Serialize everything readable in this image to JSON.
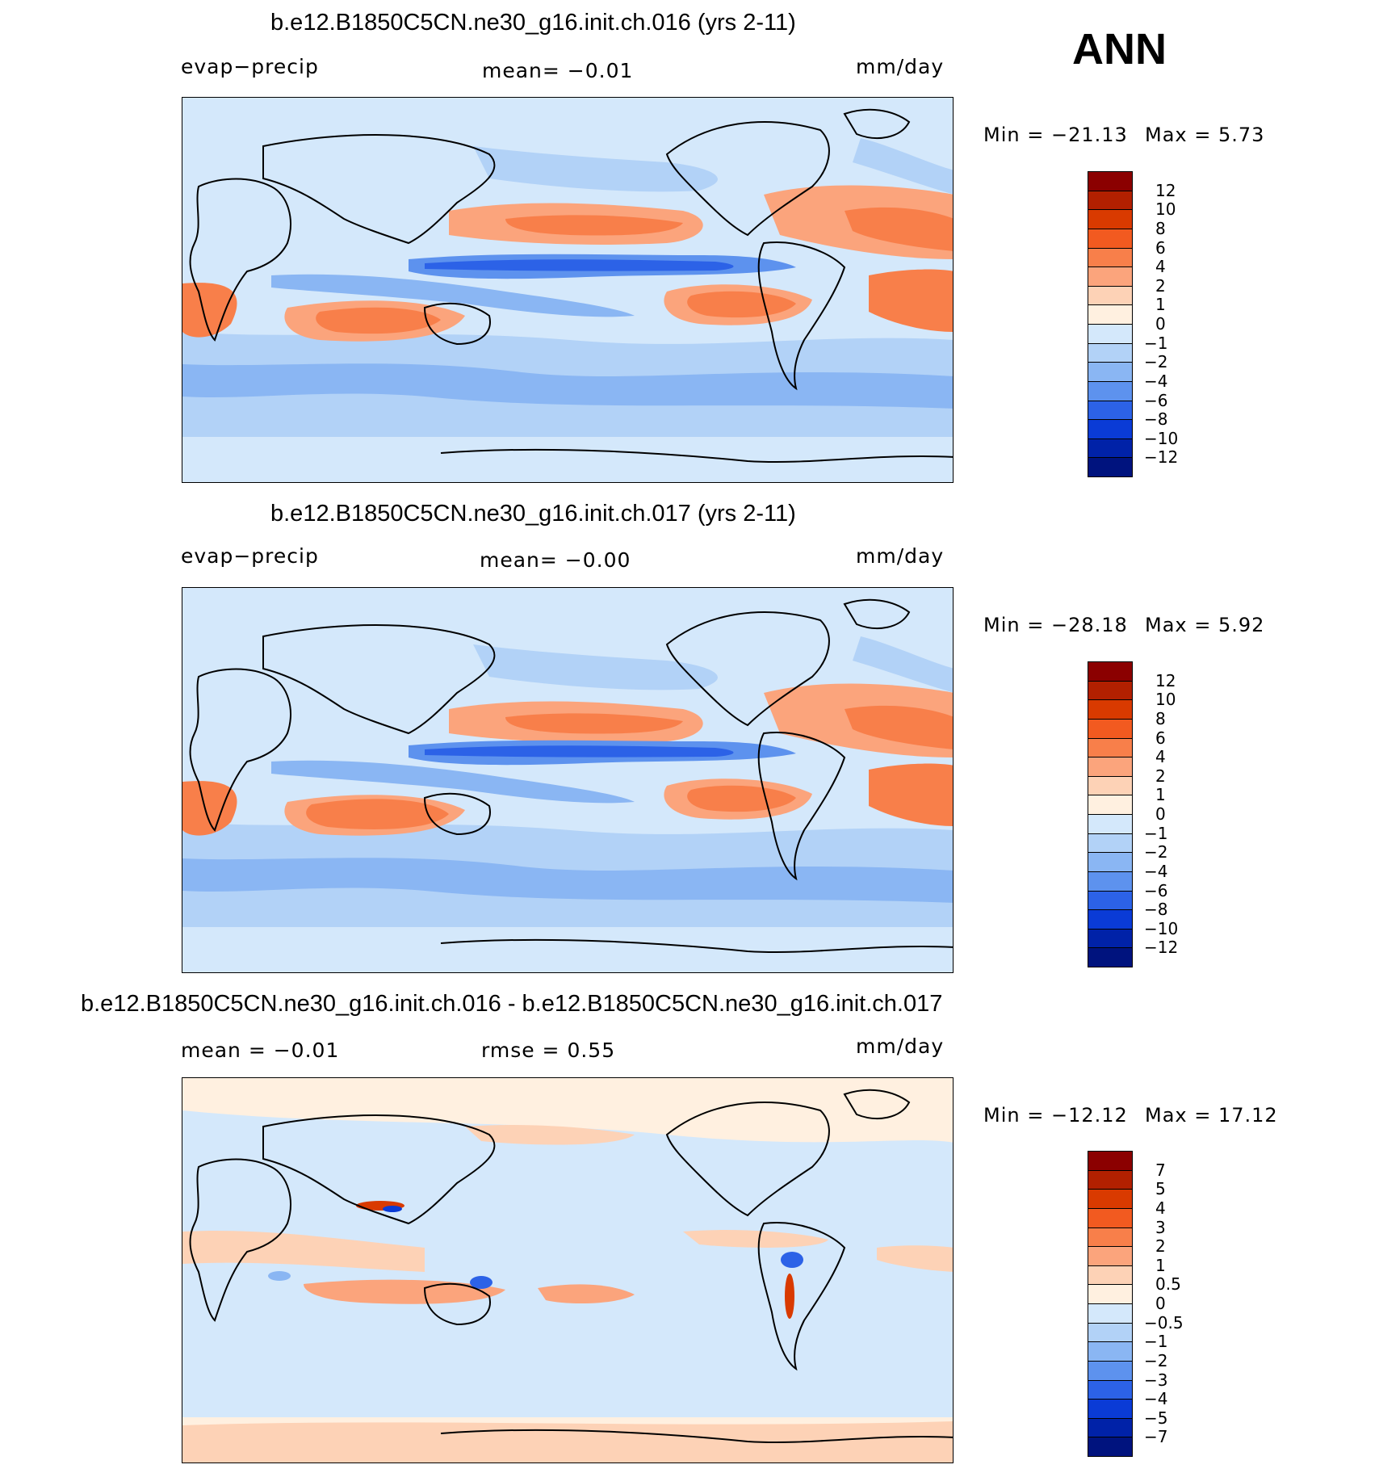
{
  "season": "ANN",
  "chart_data": [
    {
      "type": "heatmap",
      "title": "b.e12.B1850C5CN.ne30_g16.init.ch.016 (yrs 2-11)",
      "left_label": "evap−precip",
      "center_label": "mean=   −0.01",
      "units": "mm/day",
      "min_label": "Min  =  −21.13",
      "max_label": "Max  =     5.73",
      "colorbar_levels": [
        "12",
        "10",
        "8",
        "6",
        "4",
        "2",
        "1",
        "0",
        "−1",
        "−2",
        "−4",
        "−6",
        "−8",
        "−10",
        "−12"
      ],
      "colorbar_colors": [
        "#8b0000",
        "#b22000",
        "#d93a00",
        "#f25a20",
        "#f87f4a",
        "#fba47c",
        "#fdd2b6",
        "#fff0e0",
        "#d4e8fb",
        "#b2d2f7",
        "#8ab6f3",
        "#5d92ee",
        "#2c62e7",
        "#0a3bd6",
        "#0022a8",
        "#00137e"
      ]
    },
    {
      "type": "heatmap",
      "title": "b.e12.B1850C5CN.ne30_g16.init.ch.017 (yrs 2-11)",
      "left_label": "evap−precip",
      "center_label": "mean=   −0.00",
      "units": "mm/day",
      "min_label": "Min  =  −28.18",
      "max_label": "Max  =     5.92",
      "colorbar_levels": [
        "12",
        "10",
        "8",
        "6",
        "4",
        "2",
        "1",
        "0",
        "−1",
        "−2",
        "−4",
        "−6",
        "−8",
        "−10",
        "−12"
      ],
      "colorbar_colors": [
        "#8b0000",
        "#b22000",
        "#d93a00",
        "#f25a20",
        "#f87f4a",
        "#fba47c",
        "#fdd2b6",
        "#fff0e0",
        "#d4e8fb",
        "#b2d2f7",
        "#8ab6f3",
        "#5d92ee",
        "#2c62e7",
        "#0a3bd6",
        "#0022a8",
        "#00137e"
      ]
    },
    {
      "type": "heatmap",
      "title": "b.e12.B1850C5CN.ne30_g16.init.ch.016 - b.e12.B1850C5CN.ne30_g16.init.ch.017",
      "left_label": "mean  =    −0.01",
      "center_label": "rmse  =     0.55",
      "units": "mm/day",
      "min_label": "Min  =  −12.12",
      "max_label": "Max  =    17.12",
      "colorbar_levels": [
        "7",
        "5",
        "4",
        "3",
        "2",
        "1",
        "0.5",
        "0",
        "−0.5",
        "−1",
        "−2",
        "−3",
        "−4",
        "−5",
        "−7"
      ],
      "colorbar_colors": [
        "#8b0000",
        "#b22000",
        "#d93a00",
        "#f25a20",
        "#f87f4a",
        "#fba47c",
        "#fdd2b6",
        "#fff0e0",
        "#d4e8fb",
        "#b2d2f7",
        "#8ab6f3",
        "#5d92ee",
        "#2c62e7",
        "#0a3bd6",
        "#0022a8",
        "#00137e"
      ]
    }
  ]
}
